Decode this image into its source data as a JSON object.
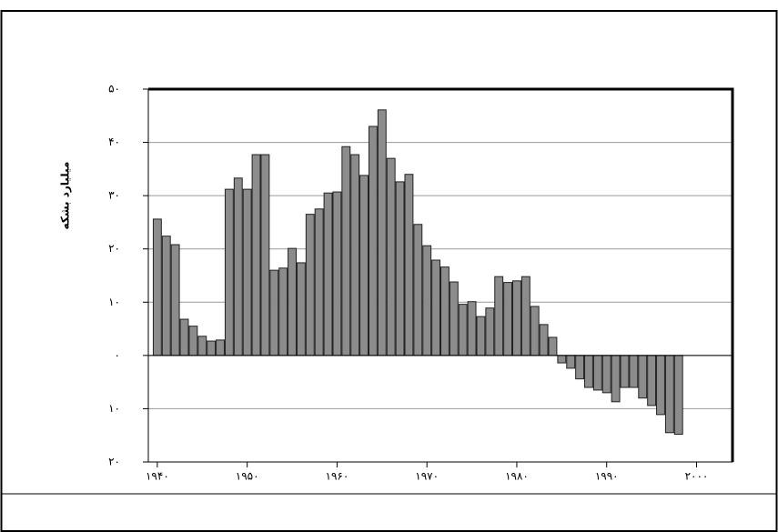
{
  "chart_data": {
    "type": "bar",
    "y_label": "میلیارد بشکه",
    "x": [
      1940,
      1941,
      1942,
      1943,
      1944,
      1945,
      1946,
      1947,
      1948,
      1949,
      1950,
      1951,
      1952,
      1953,
      1954,
      1955,
      1956,
      1957,
      1958,
      1959,
      1960,
      1961,
      1962,
      1963,
      1964,
      1965,
      1966,
      1967,
      1968,
      1969,
      1970,
      1971,
      1972,
      1973,
      1974,
      1975,
      1976,
      1977,
      1978,
      1979,
      1980,
      1981,
      1982,
      1983,
      1984,
      1985,
      1986,
      1987,
      1988,
      1989,
      1990,
      1991,
      1992,
      1993,
      1994,
      1995,
      1996,
      1997,
      1998
    ],
    "values": [
      25.6,
      22.4,
      20.8,
      6.8,
      5.5,
      3.6,
      2.7,
      2.9,
      31.2,
      33.3,
      31.2,
      37.7,
      37.7,
      16.0,
      16.4,
      20.1,
      17.4,
      26.5,
      27.5,
      30.5,
      30.7,
      39.2,
      37.7,
      33.8,
      43.0,
      46.1,
      37.0,
      32.6,
      34.0,
      24.6,
      20.6,
      17.9,
      16.6,
      13.8,
      9.6,
      10.1,
      7.3,
      8.9,
      14.8,
      13.7,
      14.0,
      14.8,
      9.2,
      5.8,
      3.4,
      -1.4,
      -2.4,
      -4.4,
      -6.0,
      -6.5,
      -7.0,
      -8.7,
      -6.0,
      -6.0,
      -8.0,
      -9.4,
      -11.1,
      -14.5,
      -14.8
    ],
    "color": "#8c8c8c",
    "xlim": [
      1939,
      2004
    ],
    "xticks": [
      {
        "value": 1940,
        "label": "۱۹۴۰"
      },
      {
        "value": 1950,
        "label": "۱۹۵۰"
      },
      {
        "value": 1960,
        "label": "۱۹۶۰"
      },
      {
        "value": 1970,
        "label": "۱۹۷۰"
      },
      {
        "value": 1980,
        "label": "۱۹۸۰"
      },
      {
        "value": 1990,
        "label": "۱۹۹۰"
      },
      {
        "value": 2000,
        "label": "۲۰۰۰"
      }
    ],
    "ylim": [
      -20,
      50
    ],
    "yticks": [
      {
        "value": -20,
        "label": "۲۰"
      },
      {
        "value": -10,
        "label": "۱۰"
      },
      {
        "value": 0,
        "label": "۰"
      },
      {
        "value": 10,
        "label": "۱۰"
      },
      {
        "value": 20,
        "label": "۲۰"
      },
      {
        "value": 30,
        "label": "۳۰"
      },
      {
        "value": 40,
        "label": "۴۰"
      },
      {
        "value": 50,
        "label": "۵۰"
      }
    ],
    "grid": true
  }
}
